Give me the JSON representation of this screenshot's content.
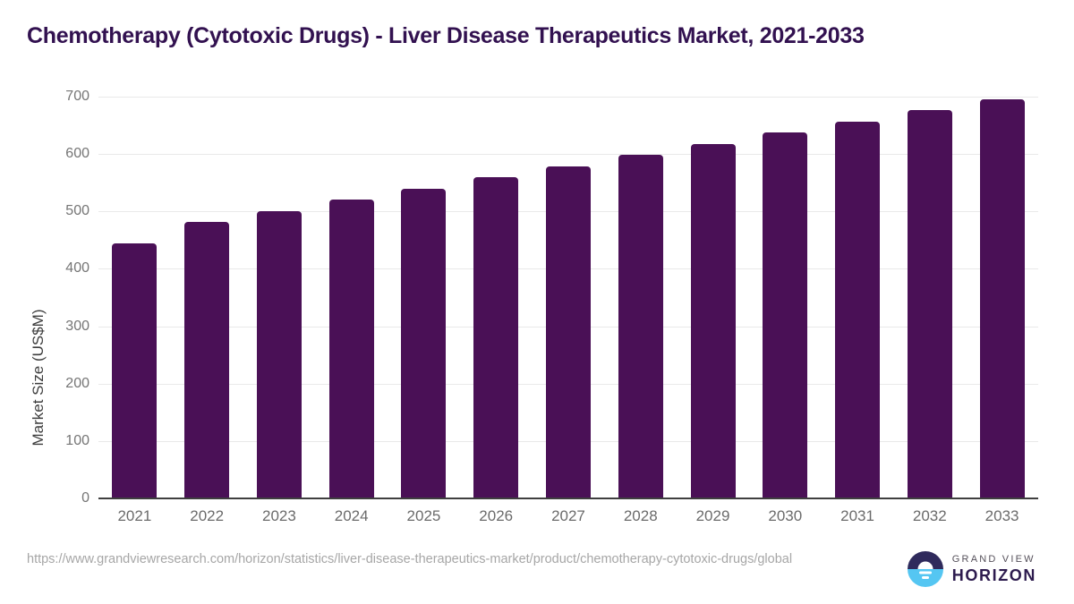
{
  "title": "Chemotherapy (Cytotoxic Drugs) - Liver Disease Therapeutics Market, 2021-2033",
  "chart_data": {
    "type": "bar",
    "title": "Chemotherapy (Cytotoxic Drugs) - Liver Disease Therapeutics Market, 2021-2033",
    "categories": [
      "2021",
      "2022",
      "2023",
      "2024",
      "2025",
      "2026",
      "2027",
      "2028",
      "2029",
      "2030",
      "2031",
      "2032",
      "2033"
    ],
    "values": [
      445,
      481,
      500,
      520,
      540,
      560,
      578,
      598,
      618,
      637,
      657,
      676,
      695
    ],
    "xlabel": "",
    "ylabel": "Market Size (US$M)",
    "ylim": [
      0,
      700
    ],
    "y_ticks": [
      0,
      100,
      200,
      300,
      400,
      500,
      600,
      700
    ],
    "grid": "horizontal-light-gray",
    "legend": "none",
    "bar_color": "#4a1056"
  },
  "footer": {
    "source_url": "https://www.grandviewresearch.com/horizon/statistics/liver-disease-therapeutics-market/product/chemotherapy-cytotoxic-drugs/global",
    "logo": {
      "top_text": "GRAND VIEW",
      "bottom_text": "HORIZON"
    }
  },
  "colors": {
    "title_text": "#321150",
    "bar": "#4a1056",
    "axis_line": "#3f3f3f",
    "gridline": "#e9e9e9",
    "tick_label": "#757575",
    "x_label": "#6b6b6b",
    "url_text": "#a6a6a6",
    "logo_navy": "#2f2a5c",
    "logo_cyan": "#55c6f2",
    "logo_horizon_text": "#2d1b4e"
  }
}
